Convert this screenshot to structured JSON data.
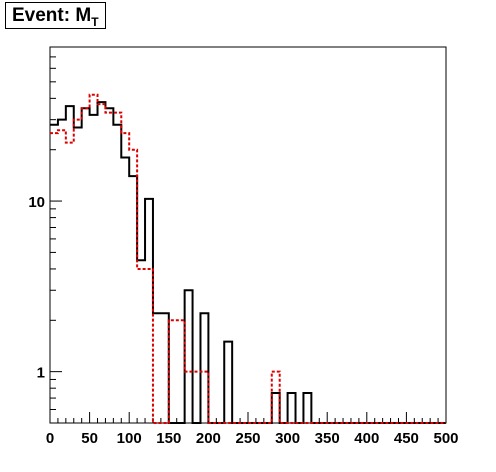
{
  "chart_data": {
    "type": "histogram",
    "title": "Event: M",
    "title_subscript": "T",
    "xlim": [
      0,
      500
    ],
    "ylim": [
      0.5,
      80
    ],
    "yscale": "log",
    "bin_width": 10,
    "x_ticks": [
      "0",
      "50",
      "100",
      "150",
      "200",
      "250",
      "300",
      "350",
      "400",
      "450",
      "500"
    ],
    "y_ticks": [
      {
        "label": "1",
        "value": 1
      },
      {
        "label": "10",
        "value": 10
      }
    ],
    "grid": false,
    "legend": "none",
    "series": [
      {
        "style": "solid",
        "color": "#000000",
        "values": [
          28,
          30,
          36,
          27,
          35,
          32,
          38,
          35,
          28,
          18,
          14,
          4.5,
          10.3,
          2.2,
          2.2,
          0,
          0,
          3,
          0,
          2.2,
          0,
          0,
          1.5,
          0,
          0,
          0,
          0,
          0,
          0.75,
          0,
          0.75,
          0,
          0.75,
          0,
          0,
          0,
          0,
          0,
          0,
          0,
          0,
          0,
          0,
          0,
          0,
          0,
          0,
          0,
          0,
          0
        ]
      },
      {
        "style": "dashed",
        "color": "#dd0000",
        "values": [
          25,
          26,
          22,
          30,
          35,
          42,
          37,
          33,
          33,
          25,
          20,
          4,
          4,
          0,
          0,
          2,
          2,
          1,
          1,
          1,
          0,
          0,
          0,
          0,
          0,
          0,
          0,
          0,
          1,
          0,
          0,
          0,
          0,
          0,
          0,
          0,
          0,
          0,
          0,
          0,
          0,
          0,
          0,
          0,
          0,
          0,
          0,
          0,
          0,
          0
        ]
      }
    ]
  }
}
